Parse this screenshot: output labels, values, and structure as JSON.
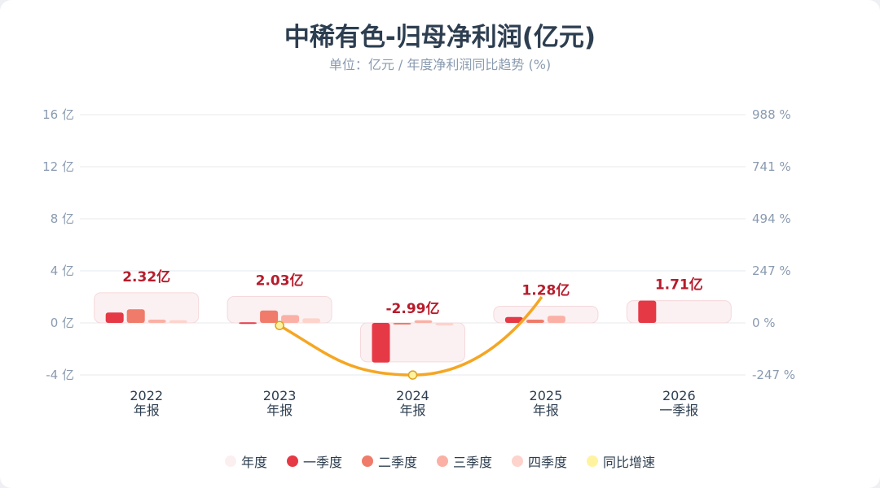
{
  "title": "中稀有色-归母净利润(亿元)",
  "subtitle": "单位：亿元 / 年度净利润同比趋势 (%)",
  "chart_data": {
    "type": "bar",
    "categories": [
      [
        "2022",
        "年报"
      ],
      [
        "2023",
        "年报"
      ],
      [
        "2024",
        "年报"
      ],
      [
        "2025",
        "年报"
      ],
      [
        "2026",
        "一季报"
      ]
    ],
    "annual": [
      2.32,
      2.03,
      -2.99,
      1.28,
      1.71
    ],
    "annual_labels": [
      "2.32亿",
      "2.03亿",
      "-2.99亿",
      "1.28亿",
      "1.71亿"
    ],
    "series": [
      {
        "name": "一季度",
        "color": "#e63946",
        "values": [
          0.8,
          0.05,
          -3.05,
          0.45,
          1.71
        ]
      },
      {
        "name": "二季度",
        "color": "#f07b6a",
        "values": [
          1.05,
          0.95,
          0.0,
          0.25,
          null
        ]
      },
      {
        "name": "三季度",
        "color": "#fbb0a5",
        "values": [
          0.25,
          0.6,
          0.2,
          0.55,
          null
        ]
      },
      {
        "name": "四季度",
        "color": "#fdd3cc",
        "values": [
          0.2,
          0.35,
          -0.2,
          null,
          null
        ]
      }
    ],
    "yoy": {
      "name": "同比增速",
      "color": "#f5a623",
      "values": [
        null,
        -12.5,
        -247.3,
        142.8,
        null
      ]
    },
    "ylim": [
      -4,
      16
    ],
    "yticks": [
      -4,
      0,
      4,
      8,
      12,
      16
    ],
    "ytick_labels": [
      "-4 亿",
      "0 亿",
      "4 亿",
      "8 亿",
      "12 亿",
      "16 亿"
    ],
    "y2lim": [
      -247,
      988
    ],
    "y2tick_labels": [
      "-247 %",
      "0 %",
      "247 %",
      "494 %",
      "741 %",
      "988 %"
    ],
    "legend": [
      "年度",
      "一季度",
      "二季度",
      "三季度",
      "四季度",
      "同比增速"
    ],
    "legend_colors": [
      "#fbeff0",
      "#e63946",
      "#f07b6a",
      "#fbb0a5",
      "#fdd3cc",
      "#fff3a0"
    ]
  }
}
